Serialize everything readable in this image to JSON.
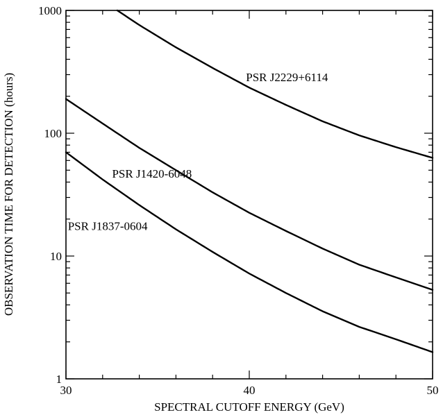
{
  "chart_data": {
    "type": "line",
    "title": "",
    "xlabel": "SPECTRAL CUTOFF ENERGY (GeV)",
    "ylabel": "OBSERVATION TIME FOR DETECTION (hours)",
    "xlim": [
      30,
      50
    ],
    "ylim": [
      1,
      1000
    ],
    "yscale": "log",
    "grid": false,
    "legend": "none",
    "x_ticks": [
      30,
      40,
      50
    ],
    "x_tick_labels": [
      "30",
      "40",
      "50"
    ],
    "x_minor_step": 2,
    "y_ticks": [
      1,
      10,
      100,
      1000
    ],
    "y_tick_labels": [
      "1",
      "10",
      "100",
      "1000"
    ],
    "line_color": "#000000",
    "series": [
      {
        "name": "PSR J2229+6114",
        "x": [
          32.8,
          34,
          36,
          38,
          40,
          42,
          44,
          46,
          48,
          50
        ],
        "y": [
          1000,
          760,
          500,
          340,
          235,
          170,
          125,
          96,
          77,
          63
        ]
      },
      {
        "name": "PSR J1420-6048",
        "x": [
          30,
          32,
          34,
          36,
          38,
          40,
          42,
          44,
          46,
          48,
          50
        ],
        "y": [
          190,
          120,
          76,
          50,
          33,
          22.5,
          16,
          11.5,
          8.5,
          6.7,
          5.3
        ]
      },
      {
        "name": "PSR J1837-0604",
        "x": [
          30,
          32,
          34,
          36,
          38,
          40,
          42,
          44,
          46,
          48,
          50
        ],
        "y": [
          70,
          42,
          26,
          16.5,
          10.8,
          7.2,
          5,
          3.55,
          2.65,
          2.1,
          1.65
        ]
      }
    ]
  }
}
